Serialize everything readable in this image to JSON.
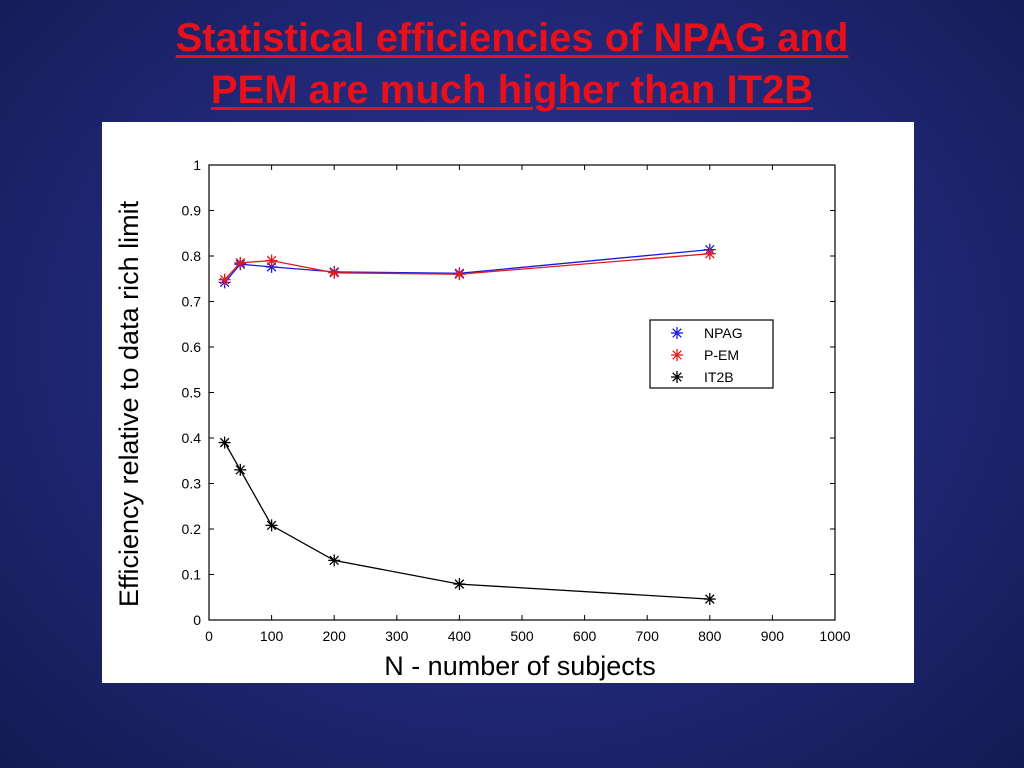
{
  "slide": {
    "title_line1": "Statistical efficiencies of NPAG and",
    "title_line2": "PEM are much higher than IT2B"
  },
  "colors": {
    "title": "#e8101a",
    "background": "#232a7c",
    "npag": "#1a1adf",
    "pem": "#e41a1a",
    "it2b": "#000000"
  },
  "chart_data": {
    "type": "line",
    "title": "",
    "xlabel": "N - number of subjects",
    "ylabel": "Efficiency relative to data rich limit",
    "xlim": [
      0,
      1000
    ],
    "ylim": [
      0,
      1
    ],
    "xticks": [
      0,
      100,
      200,
      300,
      400,
      500,
      600,
      700,
      800,
      900,
      1000
    ],
    "yticks": [
      0,
      0.1,
      0.2,
      0.3,
      0.4,
      0.5,
      0.6,
      0.7,
      0.8,
      0.9,
      1
    ],
    "xtick_labels": [
      "0",
      "100",
      "200",
      "300",
      "400",
      "500",
      "600",
      "700",
      "800",
      "900",
      "1000"
    ],
    "ytick_labels": [
      "0",
      "0.1",
      "0.2",
      "0.3",
      "0.4",
      "0.5",
      "0.6",
      "0.7",
      "0.8",
      "0.9",
      "1"
    ],
    "grid": false,
    "legend_position": "right",
    "marker": "asterisk",
    "series": [
      {
        "name": "NPAG",
        "color": "#1a1adf",
        "x": [
          25,
          50,
          100,
          200,
          400,
          800
        ],
        "y": [
          0.742,
          0.782,
          0.776,
          0.765,
          0.762,
          0.814
        ]
      },
      {
        "name": "P-EM",
        "color": "#e41a1a",
        "x": [
          25,
          50,
          100,
          200,
          400,
          800
        ],
        "y": [
          0.748,
          0.785,
          0.79,
          0.763,
          0.76,
          0.805
        ]
      },
      {
        "name": "IT2B",
        "color": "#000000",
        "x": [
          25,
          50,
          100,
          200,
          400,
          800
        ],
        "y": [
          0.39,
          0.33,
          0.208,
          0.131,
          0.079,
          0.046
        ]
      }
    ]
  }
}
